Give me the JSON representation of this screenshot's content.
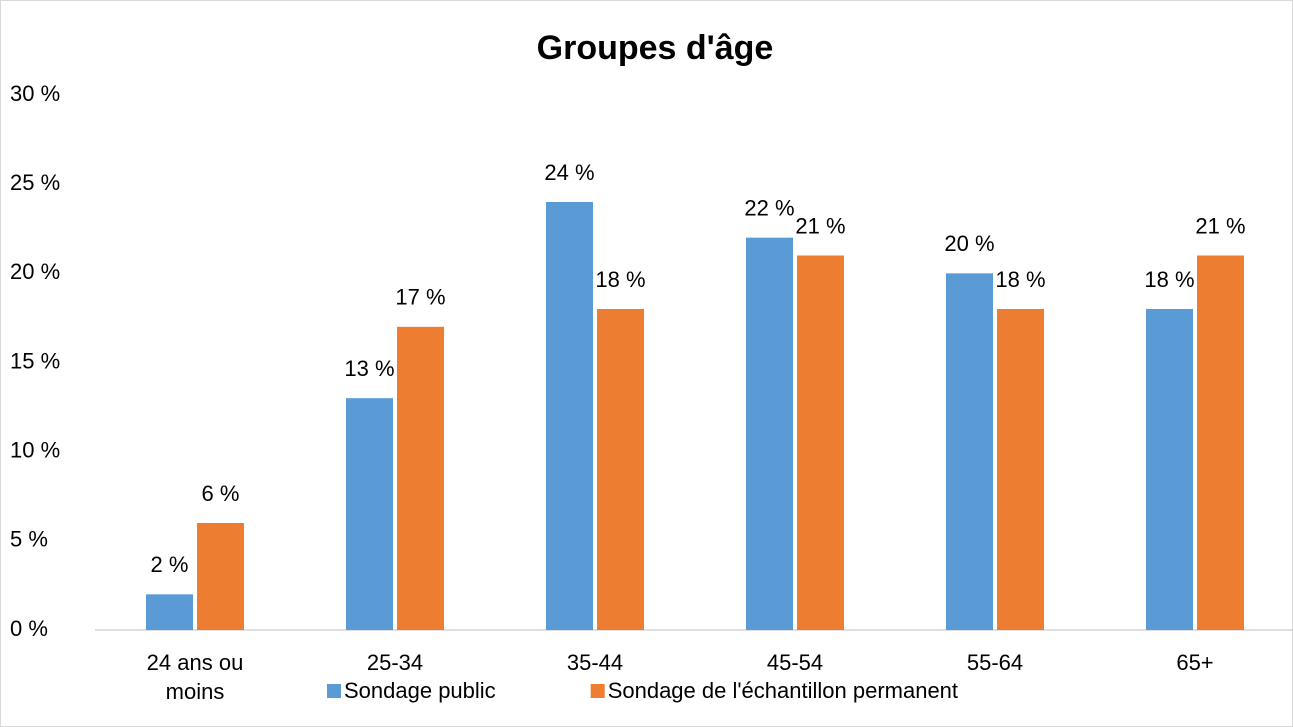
{
  "chart_data": {
    "type": "bar",
    "title": "Groupes d'âge",
    "categories": [
      "24 ans ou moins",
      "25-34",
      "35-44",
      "45-54",
      "55-64",
      "65+"
    ],
    "series": [
      {
        "name": "Sondage public",
        "color": "#5b9bd5",
        "values": [
          2,
          13,
          24,
          22,
          20,
          18
        ],
        "value_labels": [
          "2 %",
          "13 %",
          "24 %",
          "22 %",
          "20 %",
          "18 %"
        ]
      },
      {
        "name": "Sondage de l'échantillon permanent",
        "color": "#ed7d31",
        "values": [
          6,
          17,
          18,
          21,
          18,
          21
        ],
        "value_labels": [
          "6 %",
          "17 %",
          "18 %",
          "21 %",
          "18 %",
          "21 %"
        ]
      }
    ],
    "ylim": [
      0,
      30
    ],
    "yticks": [
      {
        "value": 0,
        "label": "0 %"
      },
      {
        "value": 5,
        "label": "5 %"
      },
      {
        "value": 10,
        "label": "10 %"
      },
      {
        "value": 15,
        "label": "15 %"
      },
      {
        "value": 20,
        "label": "20 %"
      },
      {
        "value": 25,
        "label": "25 %"
      },
      {
        "value": 30,
        "label": "30 %"
      }
    ],
    "grid": false,
    "legend": "bottom"
  }
}
